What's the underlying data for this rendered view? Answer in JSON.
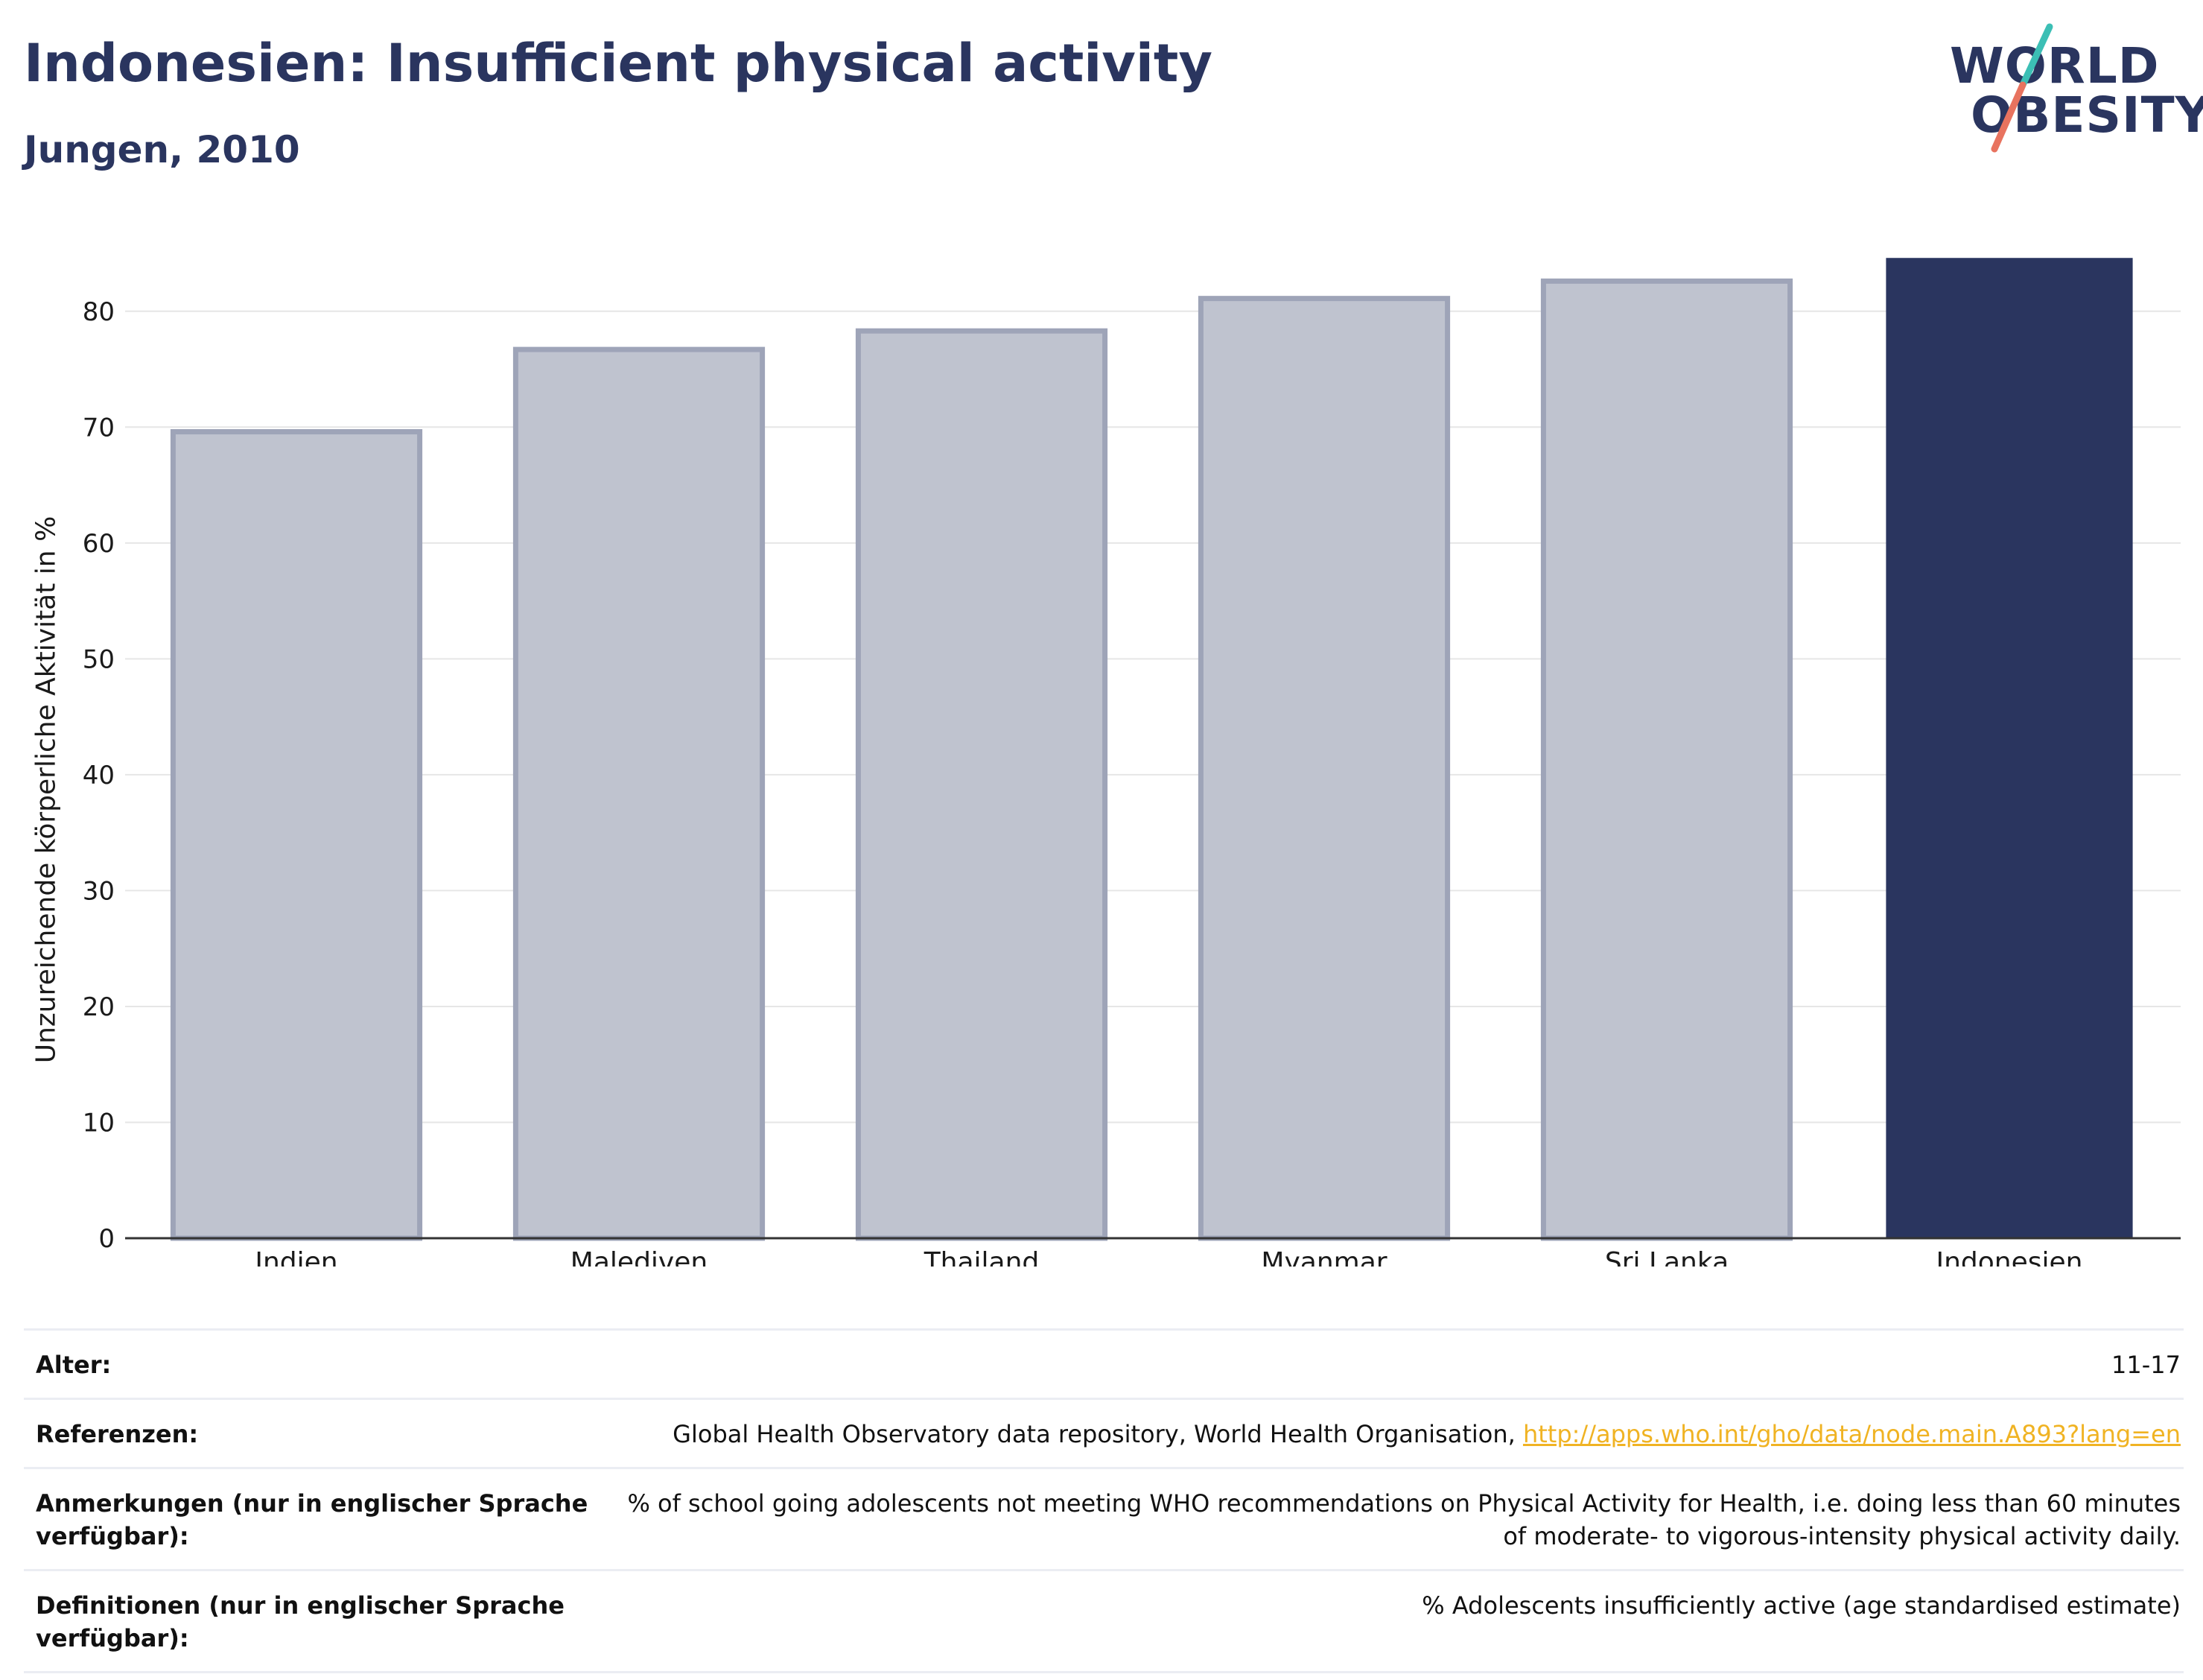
{
  "header": {
    "title": "Indonesien: Insufficient physical activity",
    "subtitle": "Jungen, 2010"
  },
  "logo": {
    "line1": "WORLD",
    "line2": "OBESITY"
  },
  "colors": {
    "highlight": "#2a355f",
    "bar_fill": "#bfc3cf",
    "bar_stroke": "#9ea4b8",
    "link": "#f0b323",
    "logo_teal": "#3cbfb5",
    "logo_coral": "#e8735f"
  },
  "chart_data": {
    "type": "bar",
    "categories": [
      "Indien",
      "Malediven",
      "Thailand",
      "Myanmar",
      "Sri Lanka",
      "Indonesien"
    ],
    "values": [
      69.6,
      76.7,
      78.3,
      81.1,
      82.6,
      84.6
    ],
    "highlight": "Indonesien",
    "ylabel": "Unzureichende körperliche Aktivität in %",
    "ylim": [
      0,
      85
    ],
    "yticks": [
      0,
      10,
      20,
      30,
      40,
      50,
      60,
      70,
      80
    ],
    "grid": true
  },
  "meta": {
    "age": {
      "label": "Alter:",
      "value": "11-17"
    },
    "references": {
      "label": "Referenzen:",
      "value": "Global Health Observatory data repository, World Health Organisation, ",
      "link": "http://apps.who.int/gho/data/node.main.A893?lang=en"
    },
    "notes": {
      "label": "Anmerkungen (nur in englischer Sprache verfügbar):",
      "value": "% of school going adolescents not meeting WHO recommendations on Physical Activity for Health, i.e. doing less than 60 minutes of moderate- to vigorous-intensity physical activity daily."
    },
    "definitions": {
      "label": "Definitionen (nur in englischer Sprache verfügbar):",
      "value": "% Adolescents insufficiently active (age standardised estimate)"
    }
  }
}
